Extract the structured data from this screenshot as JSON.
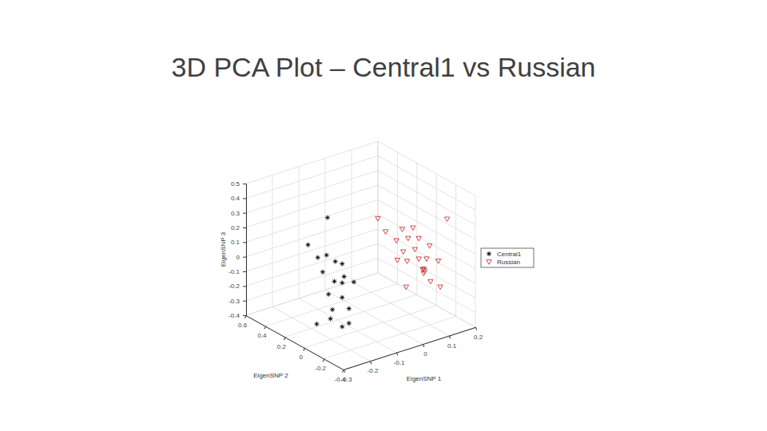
{
  "chart_data": {
    "type": "scatter3d",
    "title": "3D PCA Plot – Central1 vs Russian",
    "x_label": "EigenSNP 1",
    "y_label": "EigenSNP 2",
    "z_label": "EigenSNP 3",
    "xlim": [
      -0.3,
      0.2
    ],
    "ylim": [
      -0.4,
      0.6
    ],
    "zlim": [
      -0.4,
      0.5
    ],
    "xticks": [
      -0.3,
      -0.2,
      -0.1,
      0,
      0.1,
      0.2
    ],
    "yticks": [
      -0.4,
      -0.2,
      0,
      0.2,
      0.4,
      0.6
    ],
    "zticks": [
      -0.4,
      -0.3,
      -0.2,
      -0.1,
      0,
      0.1,
      0.2,
      0.3,
      0.4,
      0.5
    ],
    "grid": true,
    "legend": "right",
    "series": [
      {
        "name": "Central1",
        "color": "#000000",
        "marker": "asterisk",
        "x": [
          -0.15,
          -0.15,
          -0.15,
          -0.15,
          -0.15,
          -0.15,
          -0.15,
          -0.15,
          -0.15,
          -0.15,
          -0.15,
          -0.15,
          -0.15,
          -0.15,
          -0.15,
          -0.15,
          -0.25,
          -0.15,
          -0.15
        ],
        "y": [
          0.17,
          0.37,
          0.27,
          0.18,
          0.09,
          0.02,
          0.22,
          0.0,
          0.02,
          -0.1,
          0.1,
          0.16,
          0.02,
          0.12,
          -0.05,
          0.14,
          0.01,
          0.02,
          -0.05
        ],
        "z": [
          0.34,
          0.08,
          0.03,
          0.08,
          0.07,
          0.08,
          -0.05,
          0.0,
          -0.05,
          0.0,
          -0.07,
          -0.18,
          -0.15,
          -0.27,
          -0.2,
          -0.34,
          -0.27,
          -0.35,
          -0.3
        ]
      },
      {
        "name": "Russian",
        "color": "#cc3333",
        "marker": "triangle-down",
        "x": [
          0.1,
          0.1,
          0.1,
          0.1,
          0.1,
          0.1,
          0.1,
          0.1,
          0.1,
          0.1,
          0.1,
          0.1,
          0.1,
          0.1,
          0.1,
          0.1,
          0.1,
          0.1,
          0.1,
          0.1,
          0.1,
          0.1,
          0.1
        ],
        "y": [
          0.33,
          0.25,
          0.08,
          -0.03,
          0.02,
          0.14,
          -0.09,
          -0.38,
          -0.2,
          0.07,
          -0.05,
          0.13,
          0.03,
          -0.09,
          -0.17,
          -0.29,
          -0.13,
          -0.15,
          -0.14,
          -0.21,
          -0.31,
          0.04,
          -0.14
        ],
        "z": [
          0.13,
          0.07,
          0.15,
          0.2,
          0.11,
          0.05,
          0.15,
          0.39,
          0.14,
          0.0,
          0.06,
          -0.08,
          -0.05,
          0.01,
          0.04,
          0.07,
          -0.05,
          -0.05,
          -0.04,
          -0.1,
          -0.1,
          -0.23,
          -0.07
        ]
      }
    ]
  }
}
